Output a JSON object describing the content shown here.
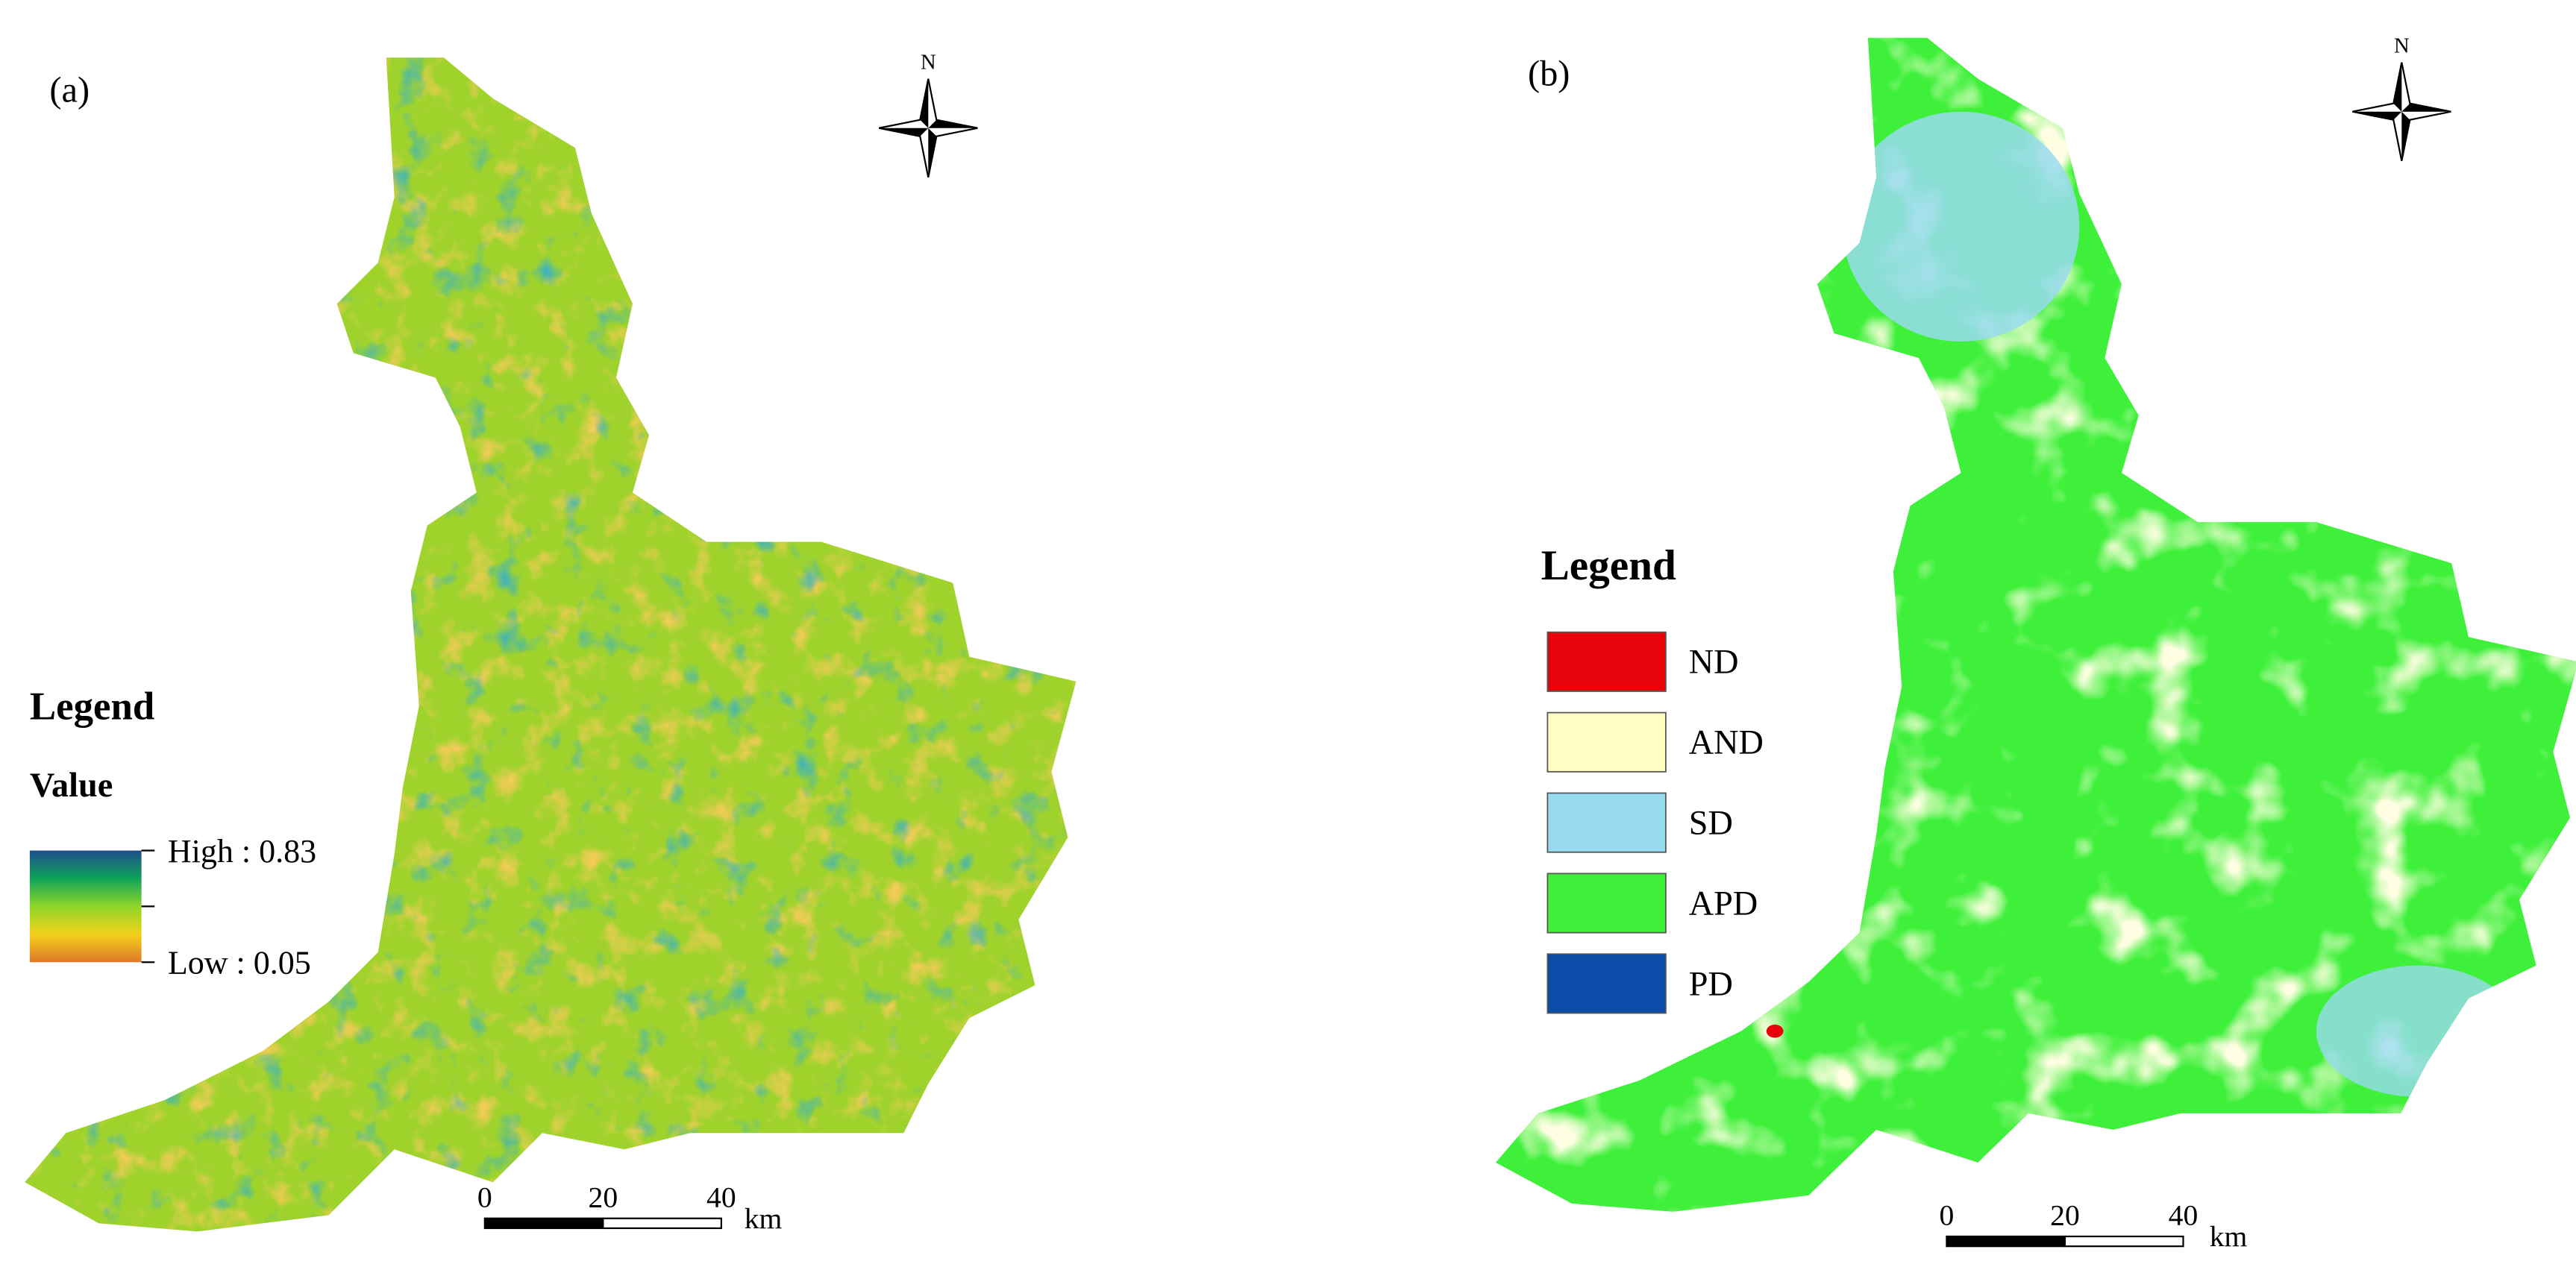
{
  "panels": [
    {
      "label": "(a)",
      "north": "N",
      "legend": {
        "title": "Legend",
        "subtitle": "Value",
        "high": "High : 0.83",
        "low": "Low : 0.05",
        "colors": [
          "#1f4e8c",
          "#0fa35a",
          "#8fd62a",
          "#f2d21a",
          "#e0782a"
        ]
      },
      "scale": {
        "ticks": [
          "0",
          "20",
          "40"
        ],
        "unit": "km"
      }
    },
    {
      "label": "(b)",
      "north": "N",
      "legend": {
        "title": "Legend",
        "items": [
          {
            "name": "ND",
            "color": "#e8020a"
          },
          {
            "name": "AND",
            "color": "#fffdc4"
          },
          {
            "name": "SD",
            "color": "#98dbf0"
          },
          {
            "name": "APD",
            "color": "#3ff03a"
          },
          {
            "name": "PD",
            "color": "#0a4ca8"
          }
        ]
      },
      "scale": {
        "ticks": [
          "0",
          "20",
          "40"
        ],
        "unit": "km"
      }
    }
  ]
}
